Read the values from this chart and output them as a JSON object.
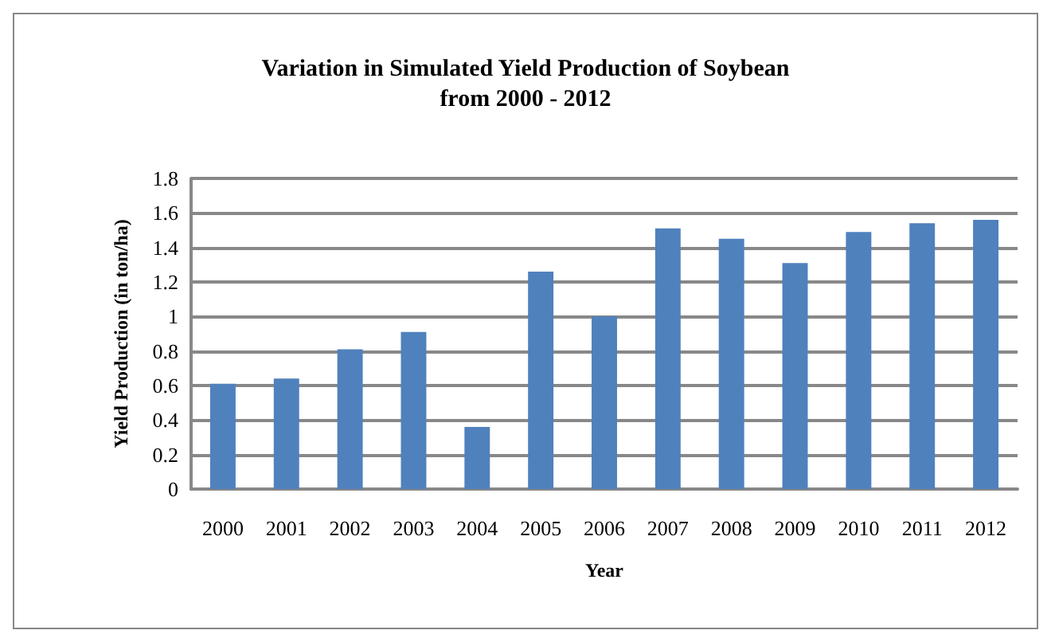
{
  "chart_data": {
    "type": "bar",
    "title": "Variation in Simulated Yield Production of Soybean\nfrom 2000 - 2012",
    "xlabel": "Year",
    "ylabel": "Yield Production (in ton/ha)",
    "categories": [
      "2000",
      "2001",
      "2002",
      "2003",
      "2004",
      "2005",
      "2006",
      "2007",
      "2008",
      "2009",
      "2010",
      "2011",
      "2012"
    ],
    "values": [
      0.61,
      0.64,
      0.81,
      0.91,
      0.36,
      1.26,
      1.0,
      1.51,
      1.45,
      1.31,
      1.49,
      1.54,
      1.56
    ],
    "color": "#4f81bd",
    "ylim": [
      0,
      1.8
    ],
    "yticks": [
      0,
      0.2,
      0.4,
      0.6,
      0.8,
      1,
      1.2,
      1.4,
      1.6,
      1.8
    ],
    "grid": "y"
  }
}
